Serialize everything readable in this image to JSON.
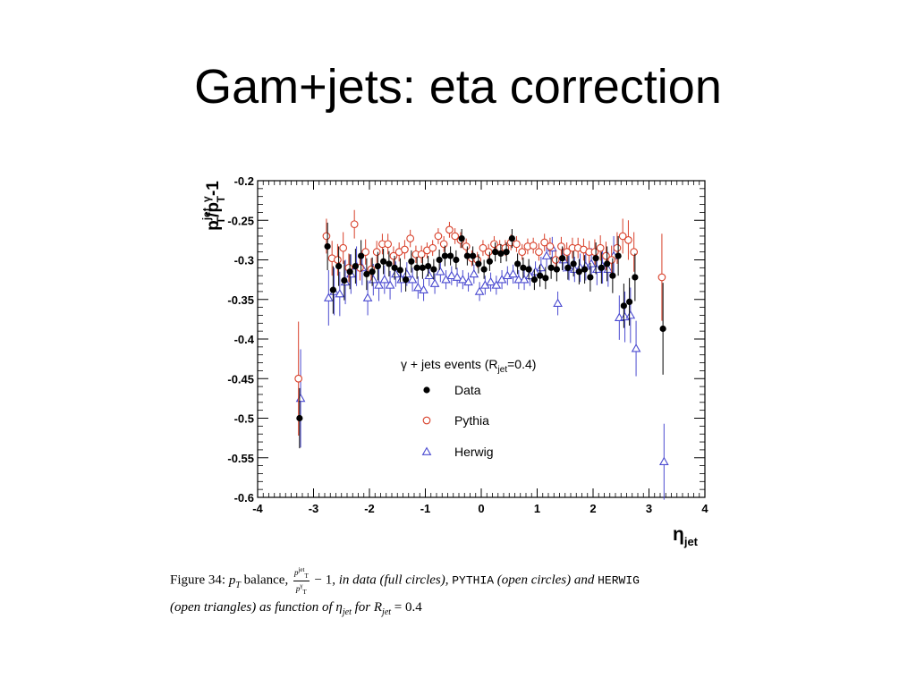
{
  "slide": {
    "title": "Gam+jets: eta correction"
  },
  "caption": {
    "figure_label": "Figure 34:",
    "pt_symbol": "p",
    "pt_sub": "T",
    "balance_word": "balance,",
    "frac_num": "p",
    "frac_num_sup": "jet",
    "frac_num_sub": "T",
    "frac_den": "p",
    "frac_den_sup": "γ",
    "frac_den_sub": "T",
    "minus_one": "− 1,",
    "in_data": "in data (full circles),",
    "pythia": "PYTHIA",
    "open_circles": "(open circles) and",
    "herwig": "HERWIG",
    "line2_a": "(open triangles) as function of",
    "eta": "η",
    "eta_sub": "jet",
    "for_text": "for",
    "R": "R",
    "R_sub": "jet",
    "R_val": "= 0.4"
  },
  "chart_data": {
    "type": "scatter",
    "title": "",
    "ylabel": "p_T^jet/p_T^γ-1",
    "xlabel": "η_jet",
    "xlim": [
      -4,
      4
    ],
    "ylim": [
      -0.6,
      -0.2
    ],
    "xticks": [
      "-4",
      "-3",
      "-2",
      "-1",
      "0",
      "1",
      "2",
      "3",
      "4"
    ],
    "yticks": [
      "-0.2",
      "-0.25",
      "-0.3",
      "-0.35",
      "-0.4",
      "-0.45",
      "-0.5",
      "-0.55",
      "-0.6"
    ],
    "grid": false,
    "legend": {
      "title": "γ + jets events (R_jet=0.4)",
      "position": "center",
      "entries": [
        "Data",
        "Pythia",
        "Herwig"
      ]
    },
    "series": [
      {
        "name": "Data",
        "marker": "filled-circle",
        "color": "#000000",
        "x": [
          -3.25,
          -2.75,
          -2.65,
          -2.55,
          -2.45,
          -2.35,
          -2.25,
          -2.15,
          -2.05,
          -1.95,
          -1.85,
          -1.75,
          -1.65,
          -1.55,
          -1.45,
          -1.35,
          -1.25,
          -1.15,
          -1.05,
          -0.95,
          -0.85,
          -0.75,
          -0.65,
          -0.55,
          -0.45,
          -0.35,
          -0.25,
          -0.15,
          -0.05,
          0.05,
          0.15,
          0.25,
          0.35,
          0.45,
          0.55,
          0.65,
          0.75,
          0.85,
          0.95,
          1.05,
          1.15,
          1.25,
          1.35,
          1.45,
          1.55,
          1.65,
          1.75,
          1.85,
          1.95,
          2.05,
          2.15,
          2.25,
          2.35,
          2.45,
          2.55,
          2.65,
          2.75,
          3.25
        ],
        "y": [
          -0.5,
          -0.283,
          -0.338,
          -0.308,
          -0.326,
          -0.315,
          -0.308,
          -0.295,
          -0.318,
          -0.315,
          -0.308,
          -0.302,
          -0.305,
          -0.31,
          -0.313,
          -0.325,
          -0.302,
          -0.31,
          -0.31,
          -0.308,
          -0.312,
          -0.3,
          -0.295,
          -0.295,
          -0.3,
          -0.273,
          -0.295,
          -0.295,
          -0.305,
          -0.312,
          -0.302,
          -0.29,
          -0.292,
          -0.29,
          -0.273,
          -0.305,
          -0.31,
          -0.312,
          -0.325,
          -0.32,
          -0.323,
          -0.31,
          -0.312,
          -0.298,
          -0.31,
          -0.305,
          -0.315,
          -0.312,
          -0.322,
          -0.298,
          -0.31,
          -0.305,
          -0.32,
          -0.295,
          -0.358,
          -0.353,
          -0.322,
          -0.387
        ],
        "yerr": [
          0.038,
          0.03,
          0.03,
          0.025,
          0.025,
          0.022,
          0.022,
          0.02,
          0.02,
          0.018,
          0.018,
          0.016,
          0.016,
          0.015,
          0.015,
          0.015,
          0.014,
          0.014,
          0.014,
          0.013,
          0.013,
          0.013,
          0.013,
          0.012,
          0.012,
          0.012,
          0.012,
          0.012,
          0.012,
          0.012,
          0.012,
          0.012,
          0.012,
          0.012,
          0.012,
          0.013,
          0.013,
          0.013,
          0.013,
          0.014,
          0.014,
          0.014,
          0.015,
          0.015,
          0.015,
          0.016,
          0.016,
          0.018,
          0.018,
          0.02,
          0.02,
          0.022,
          0.022,
          0.025,
          0.028,
          0.03,
          0.03,
          0.058
        ]
      },
      {
        "name": "Pythia",
        "marker": "open-circle",
        "color": "#d8402a",
        "x": [
          -3.25,
          -2.75,
          -2.65,
          -2.55,
          -2.45,
          -2.35,
          -2.25,
          -2.15,
          -2.05,
          -1.95,
          -1.85,
          -1.75,
          -1.65,
          -1.55,
          -1.45,
          -1.35,
          -1.25,
          -1.15,
          -1.05,
          -0.95,
          -0.85,
          -0.75,
          -0.65,
          -0.55,
          -0.45,
          -0.35,
          -0.25,
          -0.15,
          -0.05,
          0.05,
          0.15,
          0.25,
          0.35,
          0.45,
          0.55,
          0.65,
          0.75,
          0.85,
          0.95,
          1.05,
          1.15,
          1.25,
          1.35,
          1.45,
          1.55,
          1.65,
          1.75,
          1.85,
          1.95,
          2.05,
          2.15,
          2.25,
          2.35,
          2.45,
          2.55,
          2.65,
          2.75,
          3.25
        ],
        "y": [
          -0.45,
          -0.27,
          -0.298,
          -0.3,
          -0.285,
          -0.31,
          -0.255,
          -0.31,
          -0.29,
          -0.312,
          -0.29,
          -0.28,
          -0.28,
          -0.295,
          -0.29,
          -0.287,
          -0.273,
          -0.293,
          -0.293,
          -0.288,
          -0.285,
          -0.27,
          -0.28,
          -0.262,
          -0.27,
          -0.275,
          -0.283,
          -0.298,
          -0.3,
          -0.285,
          -0.29,
          -0.28,
          -0.285,
          -0.285,
          -0.278,
          -0.28,
          -0.29,
          -0.283,
          -0.282,
          -0.29,
          -0.278,
          -0.283,
          -0.3,
          -0.283,
          -0.29,
          -0.285,
          -0.285,
          -0.287,
          -0.29,
          -0.29,
          -0.285,
          -0.295,
          -0.3,
          -0.285,
          -0.27,
          -0.275,
          -0.29,
          -0.322
        ],
        "yerr": [
          0.072,
          0.022,
          0.022,
          0.02,
          0.02,
          0.018,
          0.018,
          0.016,
          0.016,
          0.014,
          0.014,
          0.013,
          0.013,
          0.012,
          0.012,
          0.012,
          0.011,
          0.011,
          0.011,
          0.01,
          0.01,
          0.01,
          0.01,
          0.01,
          0.01,
          0.01,
          0.01,
          0.01,
          0.01,
          0.01,
          0.01,
          0.01,
          0.01,
          0.01,
          0.01,
          0.01,
          0.01,
          0.01,
          0.01,
          0.011,
          0.011,
          0.011,
          0.012,
          0.012,
          0.012,
          0.013,
          0.013,
          0.014,
          0.014,
          0.016,
          0.016,
          0.018,
          0.018,
          0.02,
          0.022,
          0.025,
          0.025,
          0.055
        ]
      },
      {
        "name": "Herwig",
        "marker": "open-triangle",
        "color": "#4a4ad0",
        "x": [
          -3.25,
          -2.75,
          -2.65,
          -2.55,
          -2.45,
          -2.35,
          -2.25,
          -2.15,
          -2.05,
          -1.95,
          -1.85,
          -1.75,
          -1.65,
          -1.55,
          -1.45,
          -1.35,
          -1.25,
          -1.15,
          -1.05,
          -0.95,
          -0.85,
          -0.75,
          -0.65,
          -0.55,
          -0.45,
          -0.35,
          -0.25,
          -0.15,
          -0.05,
          0.05,
          0.15,
          0.25,
          0.35,
          0.45,
          0.55,
          0.65,
          0.75,
          0.85,
          0.95,
          1.05,
          1.15,
          1.25,
          1.35,
          1.45,
          1.55,
          1.65,
          1.75,
          1.85,
          1.95,
          2.05,
          2.15,
          2.25,
          2.35,
          2.45,
          2.55,
          2.65,
          2.75,
          3.25
        ],
        "y": [
          -0.475,
          -0.348,
          -0.34,
          -0.343,
          -0.328,
          -0.318,
          -0.308,
          -0.31,
          -0.348,
          -0.325,
          -0.332,
          -0.325,
          -0.332,
          -0.318,
          -0.325,
          -0.318,
          -0.325,
          -0.335,
          -0.338,
          -0.32,
          -0.33,
          -0.315,
          -0.325,
          -0.32,
          -0.322,
          -0.325,
          -0.328,
          -0.318,
          -0.34,
          -0.332,
          -0.328,
          -0.332,
          -0.325,
          -0.32,
          -0.318,
          -0.325,
          -0.325,
          -0.32,
          -0.315,
          -0.31,
          -0.295,
          -0.285,
          -0.355,
          -0.3,
          -0.31,
          -0.312,
          -0.31,
          -0.308,
          -0.305,
          -0.312,
          -0.308,
          -0.312,
          -0.295,
          -0.373,
          -0.372,
          -0.37,
          -0.412,
          -0.555
        ],
        "yerr": [
          0.062,
          0.035,
          0.03,
          0.028,
          0.028,
          0.025,
          0.025,
          0.022,
          0.022,
          0.02,
          0.02,
          0.018,
          0.018,
          0.016,
          0.016,
          0.015,
          0.015,
          0.014,
          0.014,
          0.013,
          0.013,
          0.013,
          0.012,
          0.012,
          0.012,
          0.012,
          0.012,
          0.012,
          0.012,
          0.012,
          0.012,
          0.012,
          0.012,
          0.012,
          0.012,
          0.012,
          0.013,
          0.013,
          0.013,
          0.014,
          0.014,
          0.014,
          0.015,
          0.015,
          0.016,
          0.016,
          0.018,
          0.018,
          0.02,
          0.02,
          0.022,
          0.022,
          0.025,
          0.028,
          0.032,
          0.035,
          0.035,
          0.048
        ]
      }
    ]
  }
}
